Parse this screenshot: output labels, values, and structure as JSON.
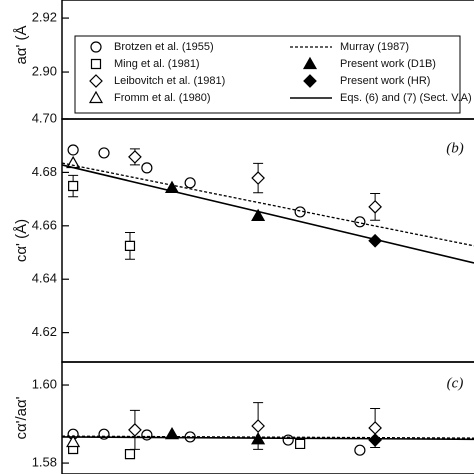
{
  "chart_data": [
    {
      "type": "scatter",
      "ylabel": "aα' (Å",
      "xlim": [
        0,
        100
      ],
      "ylim": [
        2.8826,
        2.9267
      ],
      "yticks": [
        {
          "value": 2.9,
          "label": "2.90"
        },
        2.92
      ],
      "series": []
    },
    {
      "type": "scatter",
      "ylabel": "cα' (Å)",
      "panel_label": "(b)",
      "xlim": [
        0,
        100
      ],
      "ylim": [
        4.609,
        4.7
      ],
      "yticks": [
        {
          "value": 4.62,
          "label": "4.62"
        },
        4.64,
        4.66,
        4.68,
        {
          "value": 4.7,
          "label": "4.70"
        }
      ],
      "series": [
        {
          "name": "Brotzen et al. (1955)",
          "marker": "circle",
          "filled": false,
          "x": [
            2.7,
            10.2,
            20.6,
            31.1,
            57.8,
            72.3
          ],
          "values": [
            4.6884,
            4.6873,
            4.6817,
            4.6761,
            4.6652,
            4.6615
          ]
        },
        {
          "name": "Ming et al. (1981)",
          "marker": "square",
          "filled": false,
          "x": [
            2.7,
            16.5
          ],
          "values": [
            4.6749,
            4.6525
          ],
          "errors": [
            0.004,
            0.005
          ]
        },
        {
          "name": "Leibovitch et al. (1981)",
          "marker": "diamond",
          "filled": false,
          "x": [
            17.7,
            47.6,
            76.0
          ],
          "values": [
            4.6858,
            4.6779,
            4.6671
          ],
          "errors": [
            0.003,
            0.0055,
            0.005
          ]
        },
        {
          "name": "Fromm et al. (1980)",
          "marker": "triangle",
          "filled": false,
          "x": [
            2.7
          ],
          "values": [
            4.6835
          ]
        },
        {
          "name": "Murray (1987)",
          "marker": "line",
          "dash": true,
          "x": [
            0,
            100
          ],
          "values": [
            4.6835,
            4.6525
          ]
        },
        {
          "name": "Present work (D1B)",
          "marker": "triangle",
          "filled": true,
          "x": [
            26.7,
            47.6
          ],
          "values": [
            4.6742,
            4.6637
          ]
        },
        {
          "name": "Present work (HR)",
          "marker": "diamond",
          "filled": true,
          "x": [
            76.0
          ],
          "values": [
            4.6544
          ]
        },
        {
          "name": "Eqs. (6) and (7) (Sect. V.A)",
          "marker": "line",
          "dash": false,
          "x": [
            0,
            100
          ],
          "values": [
            4.6828,
            4.6461
          ]
        }
      ]
    },
    {
      "type": "scatter",
      "ylabel": "cα'/aα'",
      "panel_label": "(c)",
      "xlim": [
        0,
        100
      ],
      "ylim": [
        1.5772,
        1.6059
      ],
      "yticks": [
        1.58,
        {
          "value": 1.6,
          "label": "1.60"
        }
      ],
      "series": [
        {
          "marker": "circle",
          "filled": false,
          "x": [
            2.7,
            10.2,
            20.6,
            31.1,
            54.9,
            72.3
          ],
          "values": [
            1.5874,
            1.5874,
            1.5872,
            1.5867,
            1.5859,
            1.5833
          ]
        },
        {
          "marker": "square",
          "filled": false,
          "x": [
            2.7,
            16.5,
            57.8
          ],
          "values": [
            1.5836,
            1.5823,
            1.5849
          ]
        },
        {
          "marker": "diamond",
          "filled": false,
          "x": [
            17.7,
            47.6,
            76.0
          ],
          "values": [
            1.5885,
            1.5895,
            1.589
          ],
          "errors": [
            0.005,
            0.006,
            0.005
          ]
        },
        {
          "marker": "triangle",
          "filled": false,
          "x": [
            2.7
          ],
          "values": [
            1.5854
          ]
        },
        {
          "marker": "line",
          "dash": true,
          "x": [
            0,
            100
          ],
          "values": [
            1.5869,
            1.5864
          ]
        },
        {
          "marker": "triangle",
          "filled": true,
          "x": [
            26.7,
            47.6
          ],
          "values": [
            1.5874,
            1.5861
          ]
        },
        {
          "marker": "diamond",
          "filled": true,
          "x": [
            76.0
          ],
          "values": [
            1.5859
          ]
        },
        {
          "marker": "line",
          "dash": false,
          "x": [
            0,
            100
          ],
          "values": [
            1.5867,
            1.5861
          ]
        }
      ]
    }
  ]
}
